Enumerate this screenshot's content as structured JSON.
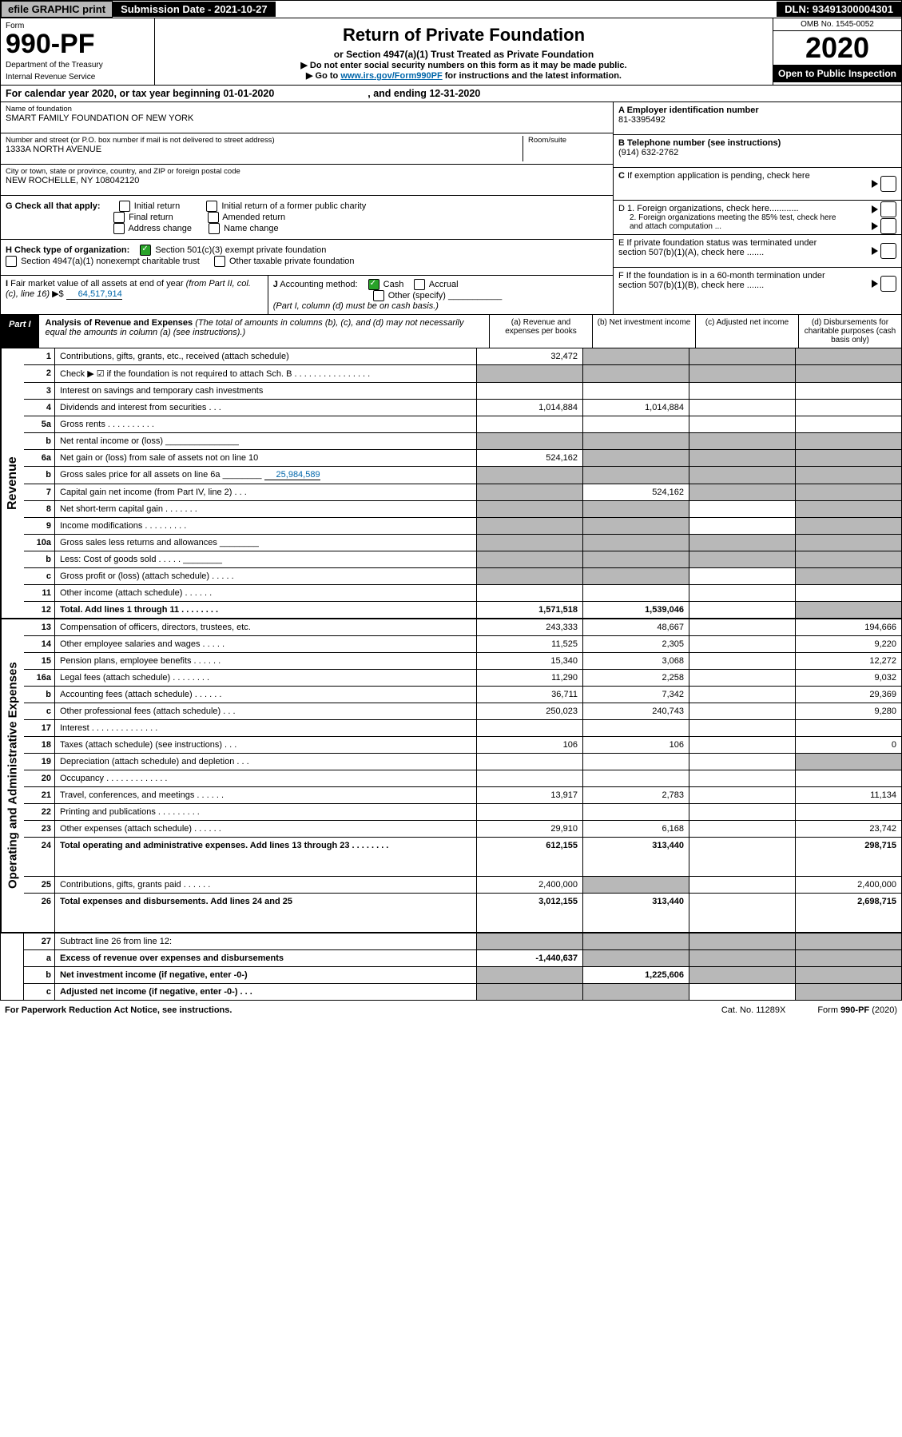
{
  "topbar": {
    "efile": "efile GRAPHIC print",
    "subdate_lbl": "Submission Date - 2021-10-27",
    "dln": "DLN: 93491300004301"
  },
  "header": {
    "form_lbl": "Form",
    "form_num": "990-PF",
    "dept1": "Department of the Treasury",
    "dept2": "Internal Revenue Service",
    "title": "Return of Private Foundation",
    "subtitle": "or Section 4947(a)(1) Trust Treated as Private Foundation",
    "note1": "▶ Do not enter social security numbers on this form as it may be made public.",
    "note2a": "▶ Go to ",
    "note2_link": "www.irs.gov/Form990PF",
    "note2b": " for instructions and the latest information.",
    "omb": "OMB No. 1545-0052",
    "year": "2020",
    "open": "Open to Public Inspection"
  },
  "calendar": {
    "text_a": "For calendar year 2020, or tax year beginning 01-01-2020",
    "text_b": ", and ending 12-31-2020"
  },
  "entity": {
    "name_lbl": "Name of foundation",
    "name": "SMART FAMILY FOUNDATION OF NEW YORK",
    "addr_lbl": "Number and street (or P.O. box number if mail is not delivered to street address)",
    "room_lbl": "Room/suite",
    "addr": "1333A NORTH AVENUE",
    "city_lbl": "City or town, state or province, country, and ZIP or foreign postal code",
    "city": "NEW ROCHELLE, NY 108042120",
    "ein_lbl": "A Employer identification number",
    "ein": "81-3395492",
    "tel_lbl": "B Telephone number (see instructions)",
    "tel": "(914) 632-2762",
    "c": "C If exemption application is pending, check here",
    "d1": "D 1. Foreign organizations, check here............",
    "d2": "2. Foreign organizations meeting the 85% test, check here and attach computation ...",
    "e": "E If private foundation status was terminated under section 507(b)(1)(A), check here .......",
    "f": "F If the foundation is in a 60-month termination under section 507(b)(1)(B), check here ......."
  },
  "g": {
    "lbl": "G Check all that apply:",
    "o1": "Initial return",
    "o2": "Final return",
    "o3": "Address change",
    "o4": "Initial return of a former public charity",
    "o5": "Amended return",
    "o6": "Name change"
  },
  "h": {
    "lbl": "H Check type of organization:",
    "o1": "Section 501(c)(3) exempt private foundation",
    "o2": "Section 4947(a)(1) nonexempt charitable trust",
    "o3": "Other taxable private foundation"
  },
  "i": {
    "lbl": "I Fair market value of all assets at end of year (from Part II, col. (c), line 16) ▶$",
    "val": "64,517,914"
  },
  "j": {
    "lbl": "J Accounting method:",
    "o1": "Cash",
    "o2": "Accrual",
    "o3": "Other (specify)",
    "note": "(Part I, column (d) must be on cash basis.)"
  },
  "part1": {
    "label": "Part I",
    "title": "Analysis of Revenue and Expenses",
    "title_note": "(The total of amounts in columns (b), (c), and (d) may not necessarily equal the amounts in column (a) (see instructions).)",
    "col_a": "(a) Revenue and expenses per books",
    "col_b": "(b) Net investment income",
    "col_c": "(c) Adjusted net income",
    "col_d": "(d) Disbursements for charitable purposes (cash basis only)"
  },
  "side_rev": "Revenue",
  "side_exp": "Operating and Administrative Expenses",
  "rows": [
    {
      "n": "1",
      "d": "Contributions, gifts, grants, etc., received (attach schedule)",
      "a": "32,472",
      "ga": false,
      "gb": true,
      "gc": true,
      "gd": true
    },
    {
      "n": "2",
      "d": "Check ▶ ☑ if the foundation is not required to attach Sch. B   .  .  .  .  .  .  .  .  .  .  .  .  .  .  .  .",
      "ga": true,
      "gb": true,
      "gc": true,
      "gd": true,
      "bold_not": true
    },
    {
      "n": "3",
      "d": "Interest on savings and temporary cash investments"
    },
    {
      "n": "4",
      "d": "Dividends and interest from securities   .    .    .",
      "a": "1,014,884",
      "b": "1,014,884"
    },
    {
      "n": "5a",
      "d": "Gross rents   .    .    .    .    .    .    .    .    .    ."
    },
    {
      "n": "b",
      "d": "Net rental income or (loss)  _______________",
      "ga": true,
      "gb": true,
      "gc": true,
      "gd": true
    },
    {
      "n": "6a",
      "d": "Net gain or (loss) from sale of assets not on line 10",
      "a": "524,162",
      "gb": true,
      "gc": true,
      "gd": true
    },
    {
      "n": "b",
      "d": "Gross sales price for all assets on line 6a ________",
      "inline_val": "25,984,589",
      "ga": true,
      "gb": true,
      "gc": true,
      "gd": true
    },
    {
      "n": "7",
      "d": "Capital gain net income (from Part IV, line 2)  .    .    .",
      "ga": true,
      "b": "524,162",
      "gc": true,
      "gd": true
    },
    {
      "n": "8",
      "d": "Net short-term capital gain  .    .    .    .    .    .    .",
      "ga": true,
      "gb": true,
      "gd": true
    },
    {
      "n": "9",
      "d": "Income modifications .    .    .    .    .    .    .    .    .",
      "ga": true,
      "gb": true,
      "gd": true
    },
    {
      "n": "10a",
      "d": "Gross sales less returns and allowances  ________",
      "ga": true,
      "gb": true,
      "gc": true,
      "gd": true
    },
    {
      "n": "b",
      "d": "Less: Cost of goods sold   .    .    .    .    . ________",
      "ga": true,
      "gb": true,
      "gc": true,
      "gd": true
    },
    {
      "n": "c",
      "d": "Gross profit or (loss) (attach schedule)   .    .    .    .    .",
      "ga": true,
      "gb": true,
      "gd": true
    },
    {
      "n": "11",
      "d": "Other income (attach schedule)   .    .    .    .    .    ."
    },
    {
      "n": "12",
      "d": "Total. Add lines 1 through 11   .    .    .    .    .    .    .    .",
      "a": "1,571,518",
      "b": "1,539,046",
      "bold": true,
      "gd": true
    }
  ],
  "exprows": [
    {
      "n": "13",
      "d": "Compensation of officers, directors, trustees, etc.",
      "a": "243,333",
      "b": "48,667",
      "dd": "194,666"
    },
    {
      "n": "14",
      "d": "Other employee salaries and wages   .    .    .    .    .",
      "a": "11,525",
      "b": "2,305",
      "dd": "9,220"
    },
    {
      "n": "15",
      "d": "Pension plans, employee benefits .    .    .    .    .    .",
      "a": "15,340",
      "b": "3,068",
      "dd": "12,272"
    },
    {
      "n": "16a",
      "d": "Legal fees (attach schedule) .    .    .    .    .    .    .    .",
      "a": "11,290",
      "b": "2,258",
      "dd": "9,032"
    },
    {
      "n": "b",
      "d": "Accounting fees (attach schedule) .    .    .    .    .    .",
      "a": "36,711",
      "b": "7,342",
      "dd": "29,369"
    },
    {
      "n": "c",
      "d": "Other professional fees (attach schedule)   .    .    .",
      "a": "250,023",
      "b": "240,743",
      "dd": "9,280"
    },
    {
      "n": "17",
      "d": "Interest .    .    .    .    .    .    .    .    .    .    .    .    .    ."
    },
    {
      "n": "18",
      "d": "Taxes (attach schedule) (see instructions)   .    .    .",
      "a": "106",
      "b": "106",
      "dd": "0"
    },
    {
      "n": "19",
      "d": "Depreciation (attach schedule) and depletion   .    .    .",
      "gd": true
    },
    {
      "n": "20",
      "d": "Occupancy .    .    .    .    .    .    .    .    .    .    .    .    ."
    },
    {
      "n": "21",
      "d": "Travel, conferences, and meetings .    .    .    .    .    .",
      "a": "13,917",
      "b": "2,783",
      "dd": "11,134"
    },
    {
      "n": "22",
      "d": "Printing and publications .    .    .    .    .    .    .    .    ."
    },
    {
      "n": "23",
      "d": "Other expenses (attach schedule) .    .    .    .    .    .",
      "a": "29,910",
      "b": "6,168",
      "dd": "23,742"
    },
    {
      "n": "24",
      "d": "Total operating and administrative expenses. Add lines 13 through 23   .    .    .    .    .    .    .    .",
      "a": "612,155",
      "b": "313,440",
      "dd": "298,715",
      "bold": true,
      "tall": true
    },
    {
      "n": "25",
      "d": "Contributions, gifts, grants paid   .    .    .    .    .    .",
      "a": "2,400,000",
      "gb": true,
      "dd": "2,400,000"
    },
    {
      "n": "26",
      "d": "Total expenses and disbursements. Add lines 24 and 25",
      "a": "3,012,155",
      "b": "313,440",
      "dd": "2,698,715",
      "bold": true,
      "tall": true
    }
  ],
  "bottomrows": [
    {
      "n": "27",
      "d": "Subtract line 26 from line 12:",
      "ga": true,
      "gb": true,
      "gc": true,
      "gd": true
    },
    {
      "n": "a",
      "d": "Excess of revenue over expenses and disbursements",
      "a": "-1,440,637",
      "gb": true,
      "gc": true,
      "gd": true,
      "bold": true
    },
    {
      "n": "b",
      "d": "Net investment income (if negative, enter -0-)",
      "ga": true,
      "b": "1,225,606",
      "gc": true,
      "gd": true,
      "bold": true
    },
    {
      "n": "c",
      "d": "Adjusted net income (if negative, enter -0-)   .    .    .",
      "ga": true,
      "gb": true,
      "gd": true,
      "bold": true
    }
  ],
  "footer": {
    "left": "For Paperwork Reduction Act Notice, see instructions.",
    "mid": "Cat. No. 11289X",
    "right": "Form 990-PF (2020)"
  }
}
